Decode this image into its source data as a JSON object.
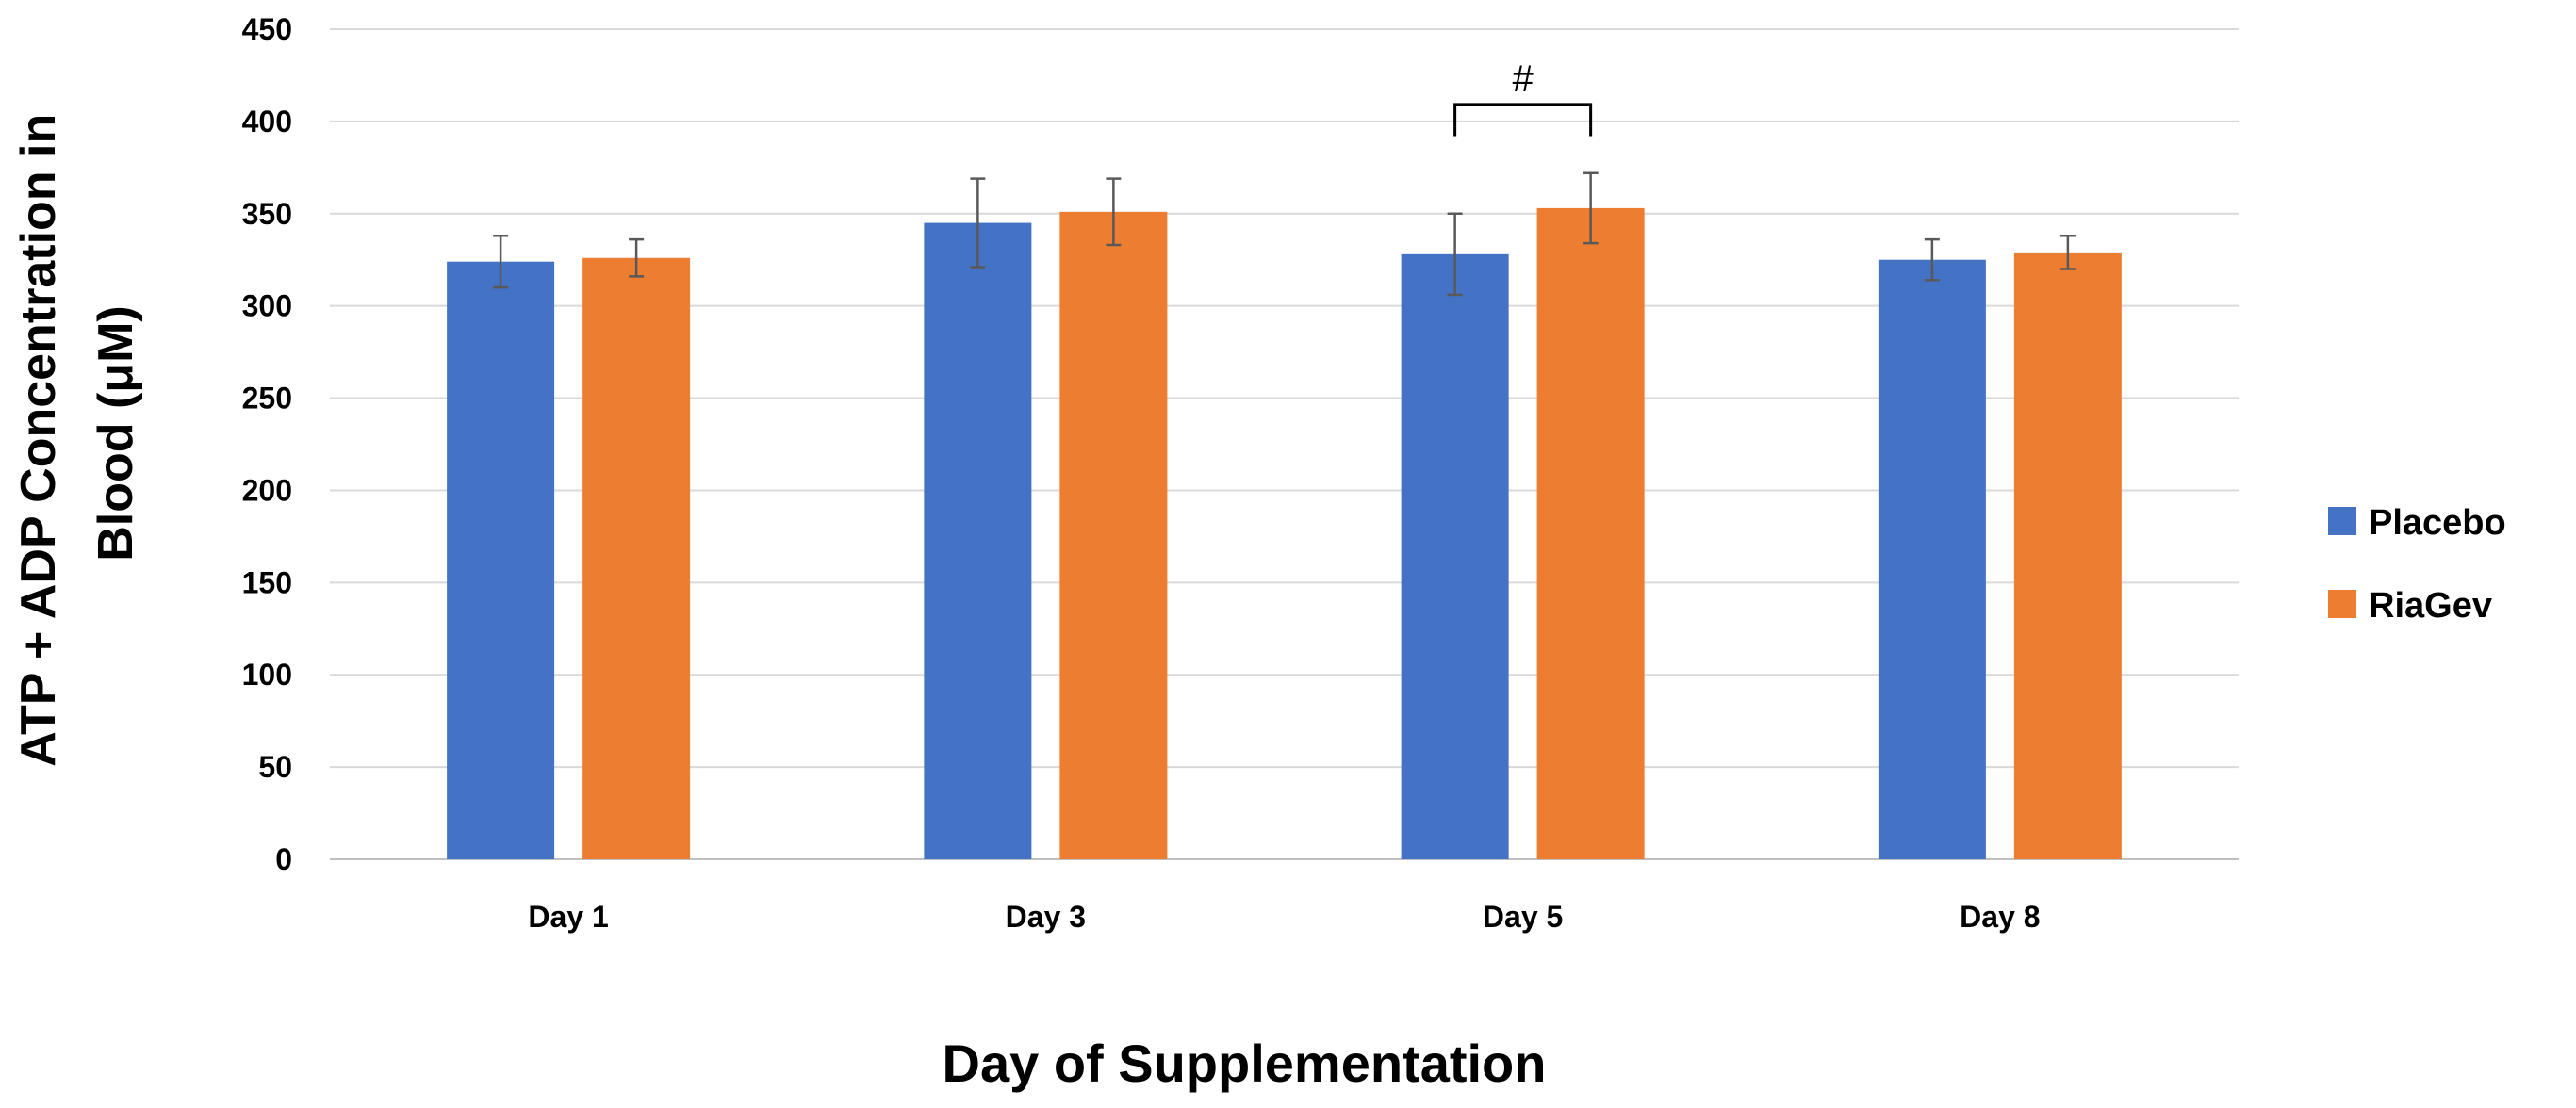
{
  "chart_data": {
    "type": "bar",
    "title": "",
    "xlabel": "Day of Supplementation",
    "ylabel_lines": [
      "ATP + ADP  Concentration in",
      "Blood (μM)"
    ],
    "ylabel": "ATP + ADP  Concentration in Blood (μM)",
    "ylim": [
      0,
      450
    ],
    "yticks": [
      0,
      50,
      100,
      150,
      200,
      250,
      300,
      350,
      400,
      450
    ],
    "grid": true,
    "categories": [
      "Day 1",
      "Day 3",
      "Day 5",
      "Day 8"
    ],
    "series": [
      {
        "name": "Placebo",
        "color": "#4472C4",
        "values": [
          324,
          345,
          328,
          325
        ],
        "errors": [
          14,
          24,
          22,
          11
        ]
      },
      {
        "name": "RiaGev",
        "color": "#ED7D31",
        "values": [
          326,
          351,
          353,
          329
        ],
        "errors": [
          10,
          18,
          19,
          9
        ]
      }
    ],
    "legend_position": "right",
    "annotations": [
      {
        "category": "Day 5",
        "text": "#"
      }
    ]
  }
}
